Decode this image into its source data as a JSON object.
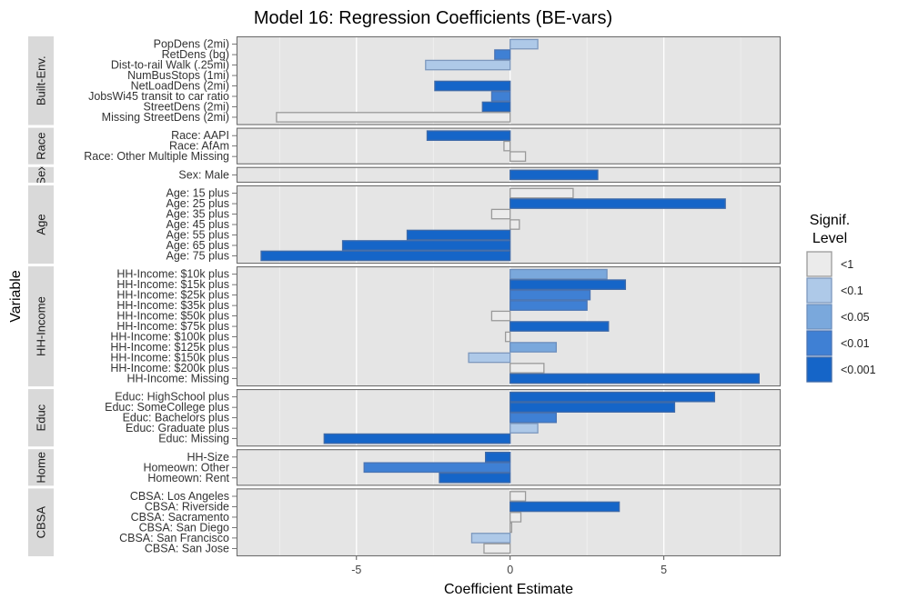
{
  "chart_data": {
    "type": "bar",
    "orientation": "horizontal",
    "title": "Model 16: Regression Coefficients (BE-vars)",
    "xlabel": "Coefficient Estimate",
    "ylabel": "Variable",
    "xlim": [
      -8.9,
      8.8
    ],
    "x_ticks": [
      -5,
      0,
      5
    ],
    "x_tick_labels": [
      "-5",
      "0",
      "5"
    ],
    "grid": true,
    "legend": {
      "title_lines": [
        "Signif.",
        "Level"
      ],
      "position": "right",
      "items": [
        {
          "label": "<1",
          "color": "#ebebeb"
        },
        {
          "label": "<0.1",
          "color": "#aec9e8"
        },
        {
          "label": "<0.05",
          "color": "#7aa8dc"
        },
        {
          "label": "<0.01",
          "color": "#3f80d4"
        },
        {
          "label": "<0.001",
          "color": "#1565c8"
        }
      ]
    },
    "groups": [
      {
        "name": "Built-Env.",
        "strip_label": "Built-Env.",
        "bars": [
          {
            "label": "PopDens (2mi)",
            "value": 0.9,
            "signif": "<0.1"
          },
          {
            "label": "RetDens (bg)",
            "value": -0.5,
            "signif": "<0.01"
          },
          {
            "label": "Dist-to-rail Walk (.25mi)",
            "value": -2.75,
            "signif": "<0.1"
          },
          {
            "label": "NumBusStops (1mi)",
            "value": 0,
            "signif": "<1"
          },
          {
            "label": "NetLoadDens (2mi)",
            "value": -2.45,
            "signif": "<0.001"
          },
          {
            "label": "JobsWi45 transit to car ratio",
            "value": -0.6,
            "signif": "<0.01"
          },
          {
            "label": "StreetDens (2mi)",
            "value": -0.9,
            "signif": "<0.001"
          },
          {
            "label": "Missing StreetDens (2mi)",
            "value": -7.6,
            "signif": "<1"
          }
        ]
      },
      {
        "name": "Race",
        "strip_label": "Race",
        "bars": [
          {
            "label": "Race: AAPI",
            "value": -2.7,
            "signif": "<0.001"
          },
          {
            "label": "Race: AfAm",
            "value": -0.2,
            "signif": "<1"
          },
          {
            "label": "Race: Other Multiple Missing",
            "value": 0.5,
            "signif": "<1"
          }
        ]
      },
      {
        "name": "Sex",
        "strip_label": "Sex",
        "bars": [
          {
            "label": "Sex: Male",
            "value": 2.85,
            "signif": "<0.001"
          }
        ]
      },
      {
        "name": "Age",
        "strip_label": "Age",
        "bars": [
          {
            "label": "Age: 15 plus",
            "value": 2.05,
            "signif": "<1"
          },
          {
            "label": "Age: 25 plus",
            "value": 7.0,
            "signif": "<0.001"
          },
          {
            "label": "Age: 35 plus",
            "value": -0.6,
            "signif": "<1"
          },
          {
            "label": "Age: 45 plus",
            "value": 0.3,
            "signif": "<1"
          },
          {
            "label": "Age: 55 plus",
            "value": -3.35,
            "signif": "<0.001"
          },
          {
            "label": "Age: 65 plus",
            "value": -5.45,
            "signif": "<0.001"
          },
          {
            "label": "Age: 75 plus",
            "value": -8.1,
            "signif": "<0.001"
          }
        ]
      },
      {
        "name": "HH-Income",
        "strip_label": "HH-Income",
        "bars": [
          {
            "label": "HH-Income:  $10k plus",
            "value": 3.15,
            "signif": "<0.05"
          },
          {
            "label": "HH-Income:  $15k plus",
            "value": 3.75,
            "signif": "<0.001"
          },
          {
            "label": "HH-Income:  $25k plus",
            "value": 2.6,
            "signif": "<0.01"
          },
          {
            "label": "HH-Income:  $35k plus",
            "value": 2.5,
            "signif": "<0.01"
          },
          {
            "label": "HH-Income:  $50k plus",
            "value": -0.6,
            "signif": "<1"
          },
          {
            "label": "HH-Income:  $75k plus",
            "value": 3.2,
            "signif": "<0.001"
          },
          {
            "label": "HH-Income: $100k plus",
            "value": -0.15,
            "signif": "<1"
          },
          {
            "label": "HH-Income: $125k plus",
            "value": 1.5,
            "signif": "<0.05"
          },
          {
            "label": "HH-Income: $150k plus",
            "value": -1.35,
            "signif": "<0.1"
          },
          {
            "label": "HH-Income: $200k plus",
            "value": 1.1,
            "signif": "<1"
          },
          {
            "label": "HH-Income: Missing",
            "value": 8.1,
            "signif": "<0.001"
          }
        ]
      },
      {
        "name": "Educ",
        "strip_label": "Educ",
        "bars": [
          {
            "label": "Educ: HighSchool plus",
            "value": 6.65,
            "signif": "<0.001"
          },
          {
            "label": "Educ: SomeCollege plus",
            "value": 5.35,
            "signif": "<0.001"
          },
          {
            "label": "Educ: Bachelors plus",
            "value": 1.5,
            "signif": "<0.01"
          },
          {
            "label": "Educ: Graduate plus",
            "value": 0.9,
            "signif": "<0.1"
          },
          {
            "label": "Educ: Missing",
            "value": -6.05,
            "signif": "<0.001"
          }
        ]
      },
      {
        "name": "Home",
        "strip_label": "Home",
        "bars": [
          {
            "label": "HH-Size",
            "value": -0.8,
            "signif": "<0.001"
          },
          {
            "label": "Homeown: Other",
            "value": -4.75,
            "signif": "<0.01"
          },
          {
            "label": "Homeown: Rent",
            "value": -2.3,
            "signif": "<0.001"
          }
        ]
      },
      {
        "name": "CBSA",
        "strip_label": "CBSA",
        "bars": [
          {
            "label": "CBSA: Los Angeles",
            "value": 0.5,
            "signif": "<1"
          },
          {
            "label": "CBSA: Riverside",
            "value": 3.55,
            "signif": "<0.001"
          },
          {
            "label": "CBSA: Sacramento",
            "value": 0.35,
            "signif": "<1"
          },
          {
            "label": "CBSA: San Diego",
            "value": 0.05,
            "signif": "<1"
          },
          {
            "label": "CBSA: San Francisco",
            "value": -1.25,
            "signif": "<0.1"
          },
          {
            "label": "CBSA: San Jose",
            "value": -0.85,
            "signif": "<1"
          }
        ]
      }
    ]
  }
}
